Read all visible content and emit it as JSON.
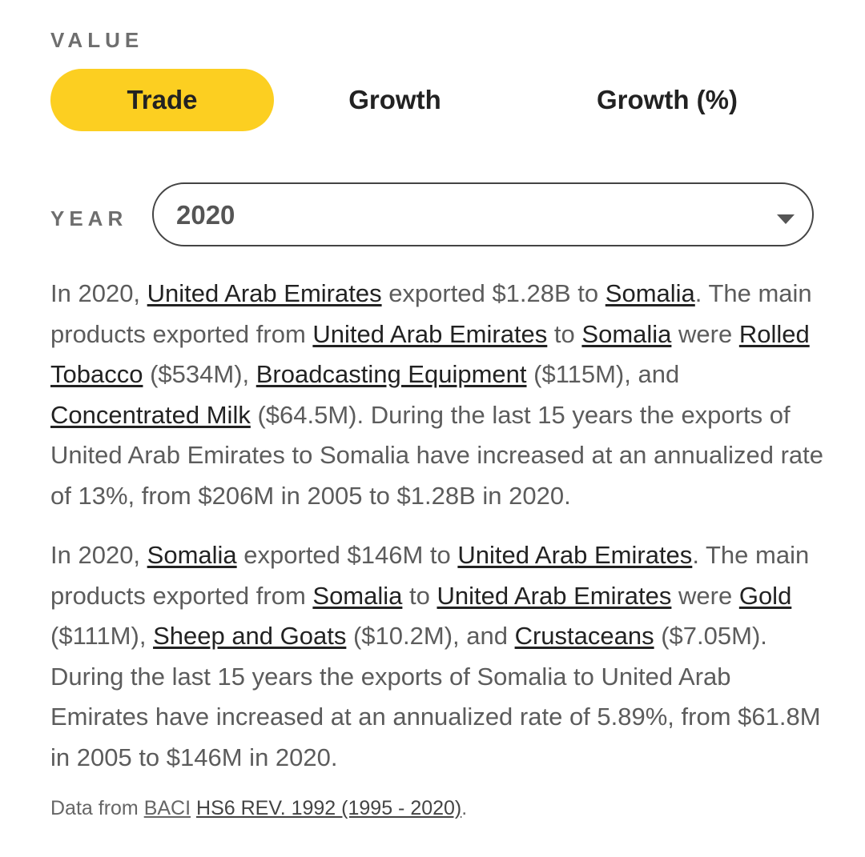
{
  "value_section": {
    "label": "VALUE",
    "options": [
      "Trade",
      "Growth",
      "Growth (%)"
    ],
    "selected": "Trade",
    "accent_color": "#fccf21"
  },
  "year_section": {
    "label": "YEAR",
    "selected_value": "2020",
    "caret_icon": "caret-down-icon"
  },
  "paragraph1": {
    "s1": "In 2020, ",
    "l1": "United Arab Emirates",
    "s2": " exported $1.28B to ",
    "l2": "Somalia",
    "s3": ". The main products exported from ",
    "l3": "United Arab Emirates",
    "s4": " to ",
    "l4": "Somalia",
    "s5": " were ",
    "l5": "Rolled Tobacco",
    "s6": " ($534M), ",
    "l6": "Broadcasting Equipment",
    "s7": " ($115M), and ",
    "l7": "Concentrated Milk",
    "s8": " ($64.5M). During the last 15 years the exports of United Arab Emirates to Somalia have increased at an annualized rate of 13%, from $206M in 2005 to $1.28B in 2020."
  },
  "paragraph2": {
    "s1": "In 2020, ",
    "l1": "Somalia",
    "s2": " exported $146M to ",
    "l2": "United Arab Emirates",
    "s3": ". The main products exported from ",
    "l3": "Somalia",
    "s4": " to ",
    "l4": "United Arab Emirates",
    "s5": " were ",
    "l5": "Gold",
    "s6": " ($111M), ",
    "l6": "Sheep and Goats",
    "s7": " ($10.2M), and ",
    "l7": "Crustaceans",
    "s8": " ($7.05M). During the last 15 years the exports of Somalia to United Arab Emirates have increased at an annualized rate of 5.89%, from $61.8M in 2005 to $146M in 2020."
  },
  "source": {
    "prefix": "Data from ",
    "link1": "BACI",
    "space": " ",
    "link2": "HS6 REV. 1992 (1995 - 2020)",
    "suffix": "."
  }
}
